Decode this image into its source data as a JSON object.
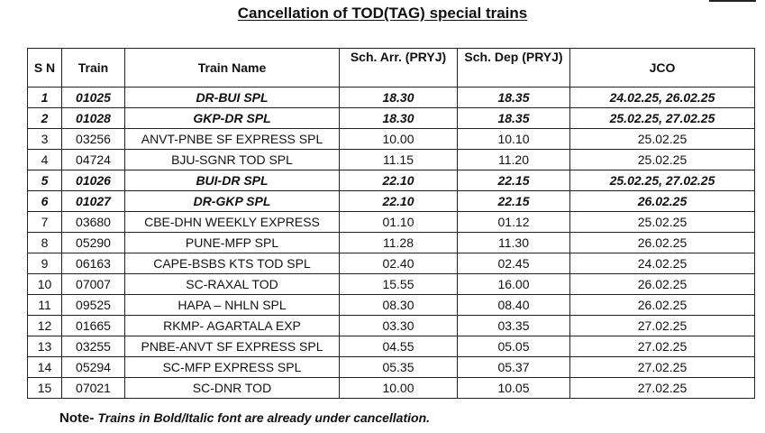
{
  "title": "Cancellation of TOD(TAG) special trains",
  "table": {
    "headers": {
      "sn": "S N",
      "train": "Train",
      "train_name": "Train Name",
      "sch_arr": "Sch. Arr. (PRYJ)",
      "sch_dep": "Sch. Dep (PRYJ)",
      "jco": "JCO"
    },
    "rows": [
      {
        "sn": "1",
        "train": "01025",
        "name": "DR-BUI SPL",
        "arr": "18.30",
        "dep": "18.35",
        "jco": "24.02.25, 26.02.25",
        "bold": true
      },
      {
        "sn": "2",
        "train": "01028",
        "name": "GKP-DR SPL",
        "arr": "18.30",
        "dep": "18.35",
        "jco": "25.02.25, 27.02.25",
        "bold": true
      },
      {
        "sn": "3",
        "train": "03256",
        "name": "ANVT-PNBE SF EXPRESS SPL",
        "arr": "10.00",
        "dep": "10.10",
        "jco": "25.02.25",
        "bold": false
      },
      {
        "sn": "4",
        "train": "04724",
        "name": "BJU-SGNR TOD SPL",
        "arr": "11.15",
        "dep": "11.20",
        "jco": "25.02.25",
        "bold": false
      },
      {
        "sn": "5",
        "train": "01026",
        "name": "BUI-DR SPL",
        "arr": "22.10",
        "dep": "22.15",
        "jco": "25.02.25, 27.02.25",
        "bold": true
      },
      {
        "sn": "6",
        "train": "01027",
        "name": "DR-GKP SPL",
        "arr": "22.10",
        "dep": "22.15",
        "jco": "26.02.25",
        "bold": true
      },
      {
        "sn": "7",
        "train": "03680",
        "name": "CBE-DHN WEEKLY EXPRESS",
        "arr": "01.10",
        "dep": "01.12",
        "jco": "25.02.25",
        "bold": false
      },
      {
        "sn": "8",
        "train": "05290",
        "name": "PUNE-MFP SPL",
        "arr": "11.28",
        "dep": "11.30",
        "jco": "26.02.25",
        "bold": false
      },
      {
        "sn": "9",
        "train": "06163",
        "name": "CAPE-BSBS KTS TOD SPL",
        "arr": "02.40",
        "dep": "02.45",
        "jco": "24.02.25",
        "bold": false
      },
      {
        "sn": "10",
        "train": "07007",
        "name": "SC-RAXAL TOD",
        "arr": "15.55",
        "dep": "16.00",
        "jco": "26.02.25",
        "bold": false
      },
      {
        "sn": "11",
        "train": "09525",
        "name": "HAPA – NHLN SPL",
        "arr": "08.30",
        "dep": "08.40",
        "jco": "26.02.25",
        "bold": false
      },
      {
        "sn": "12",
        "train": "01665",
        "name": "RKMP- AGARTALA EXP",
        "arr": "03.30",
        "dep": "03.35",
        "jco": "27.02.25",
        "bold": false
      },
      {
        "sn": "13",
        "train": "03255",
        "name": "PNBE-ANVT SF EXPRESS SPL",
        "arr": "04.55",
        "dep": "05.05",
        "jco": "27.02.25",
        "bold": false
      },
      {
        "sn": "14",
        "train": "05294",
        "name": "SC-MFP EXPRESS SPL",
        "arr": "05.35",
        "dep": "05.37",
        "jco": "27.02.25",
        "bold": false
      },
      {
        "sn": "15",
        "train": "07021",
        "name": "SC-DNR TOD",
        "arr": "10.00",
        "dep": "10.05",
        "jco": "27.02.25",
        "bold": false
      }
    ]
  },
  "note": {
    "lead": "Note-",
    "text": "Trains in Bold/Italic font are already under cancellation."
  }
}
